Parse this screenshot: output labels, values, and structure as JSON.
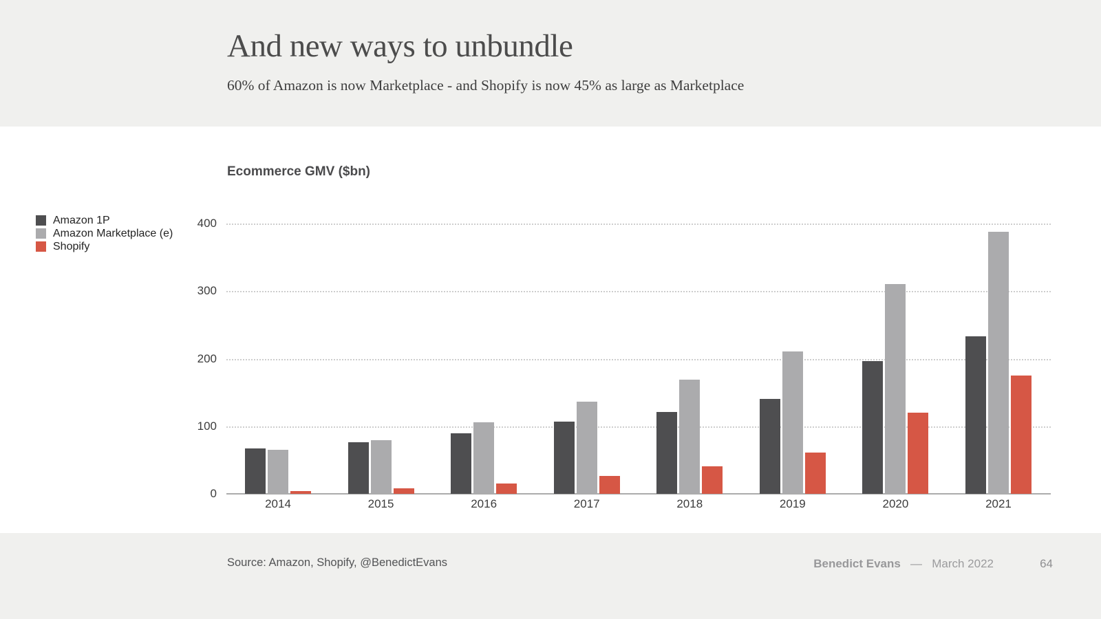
{
  "header": {
    "title": "And new ways to unbundle",
    "subtitle": "60% of Amazon is now Marketplace - and Shopify is now 45% as large as Marketplace"
  },
  "chart_data": {
    "type": "bar",
    "title": "Ecommerce GMV ($bn)",
    "categories": [
      "2014",
      "2015",
      "2016",
      "2017",
      "2018",
      "2019",
      "2020",
      "2021"
    ],
    "series": [
      {
        "name": "Amazon 1P",
        "color": "#4e4e50",
        "values": [
          67,
          76,
          90,
          107,
          121,
          140,
          196,
          233
        ]
      },
      {
        "name": "Amazon Marketplace (e)",
        "color": "#ababad",
        "values": [
          65,
          79,
          106,
          136,
          169,
          211,
          310,
          388
        ]
      },
      {
        "name": "Shopify",
        "color": "#d65745",
        "values": [
          3.8,
          7.7,
          15.4,
          26.3,
          41.1,
          61.1,
          119.6,
          175.4
        ]
      }
    ],
    "ylim": [
      0,
      400
    ],
    "yticks": [
      0,
      100,
      200,
      300,
      400
    ],
    "grid": "horizontal-dotted",
    "legend_position": "left"
  },
  "footer": {
    "source": "Source: Amazon, Shopify, @BenedictEvans",
    "author": "Benedict Evans",
    "separator": "—",
    "date": "March 2022",
    "page_number": "64"
  },
  "colors": {
    "band_background": "#f0f0ee",
    "amazon_1p": "#4e4e50",
    "amazon_marketplace": "#ababad",
    "shopify": "#d65745",
    "gridline": "#cdcdcd",
    "axis": "#ababab"
  }
}
